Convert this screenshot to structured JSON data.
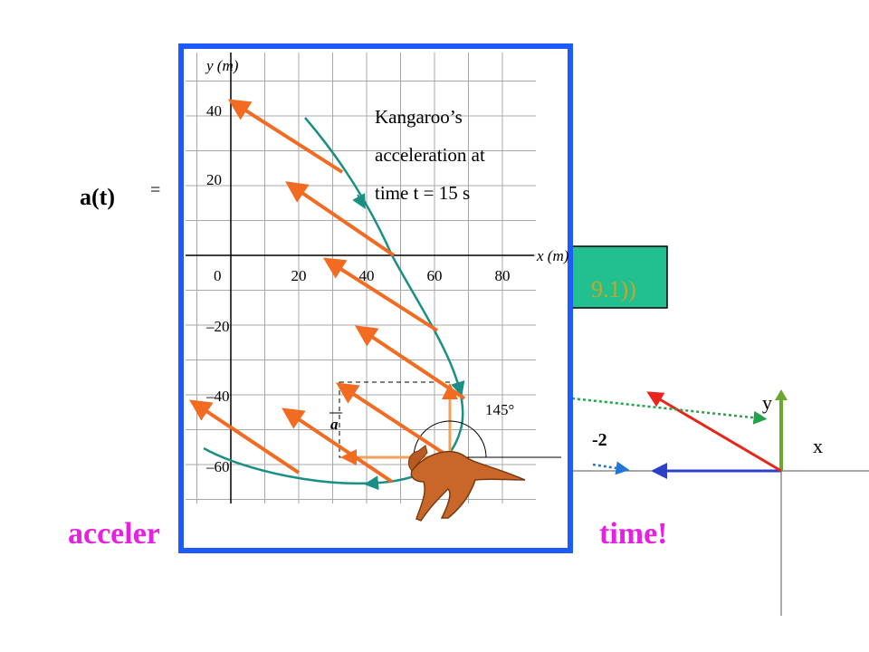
{
  "slide": {
    "left_label": "a(t)",
    "equals": "=",
    "box_text": "9.1))",
    "unit_fragment": "-2",
    "bottom_left": "acceler",
    "bottom_right": "time!",
    "axes": {
      "y": "y",
      "x": "x"
    }
  },
  "figure": {
    "y_axis_label": "y (m)",
    "x_axis_label": "x (m)",
    "y_tick_labels": [
      "40",
      "20",
      "0",
      "–20",
      "–40",
      "–60"
    ],
    "x_tick_labels": [
      "20",
      "40",
      "60",
      "80"
    ],
    "annotation": [
      "Kangaroo’s",
      "acceleration at",
      "time t = 15 s"
    ],
    "angle_label": "145°",
    "vector_label": "a"
  }
}
